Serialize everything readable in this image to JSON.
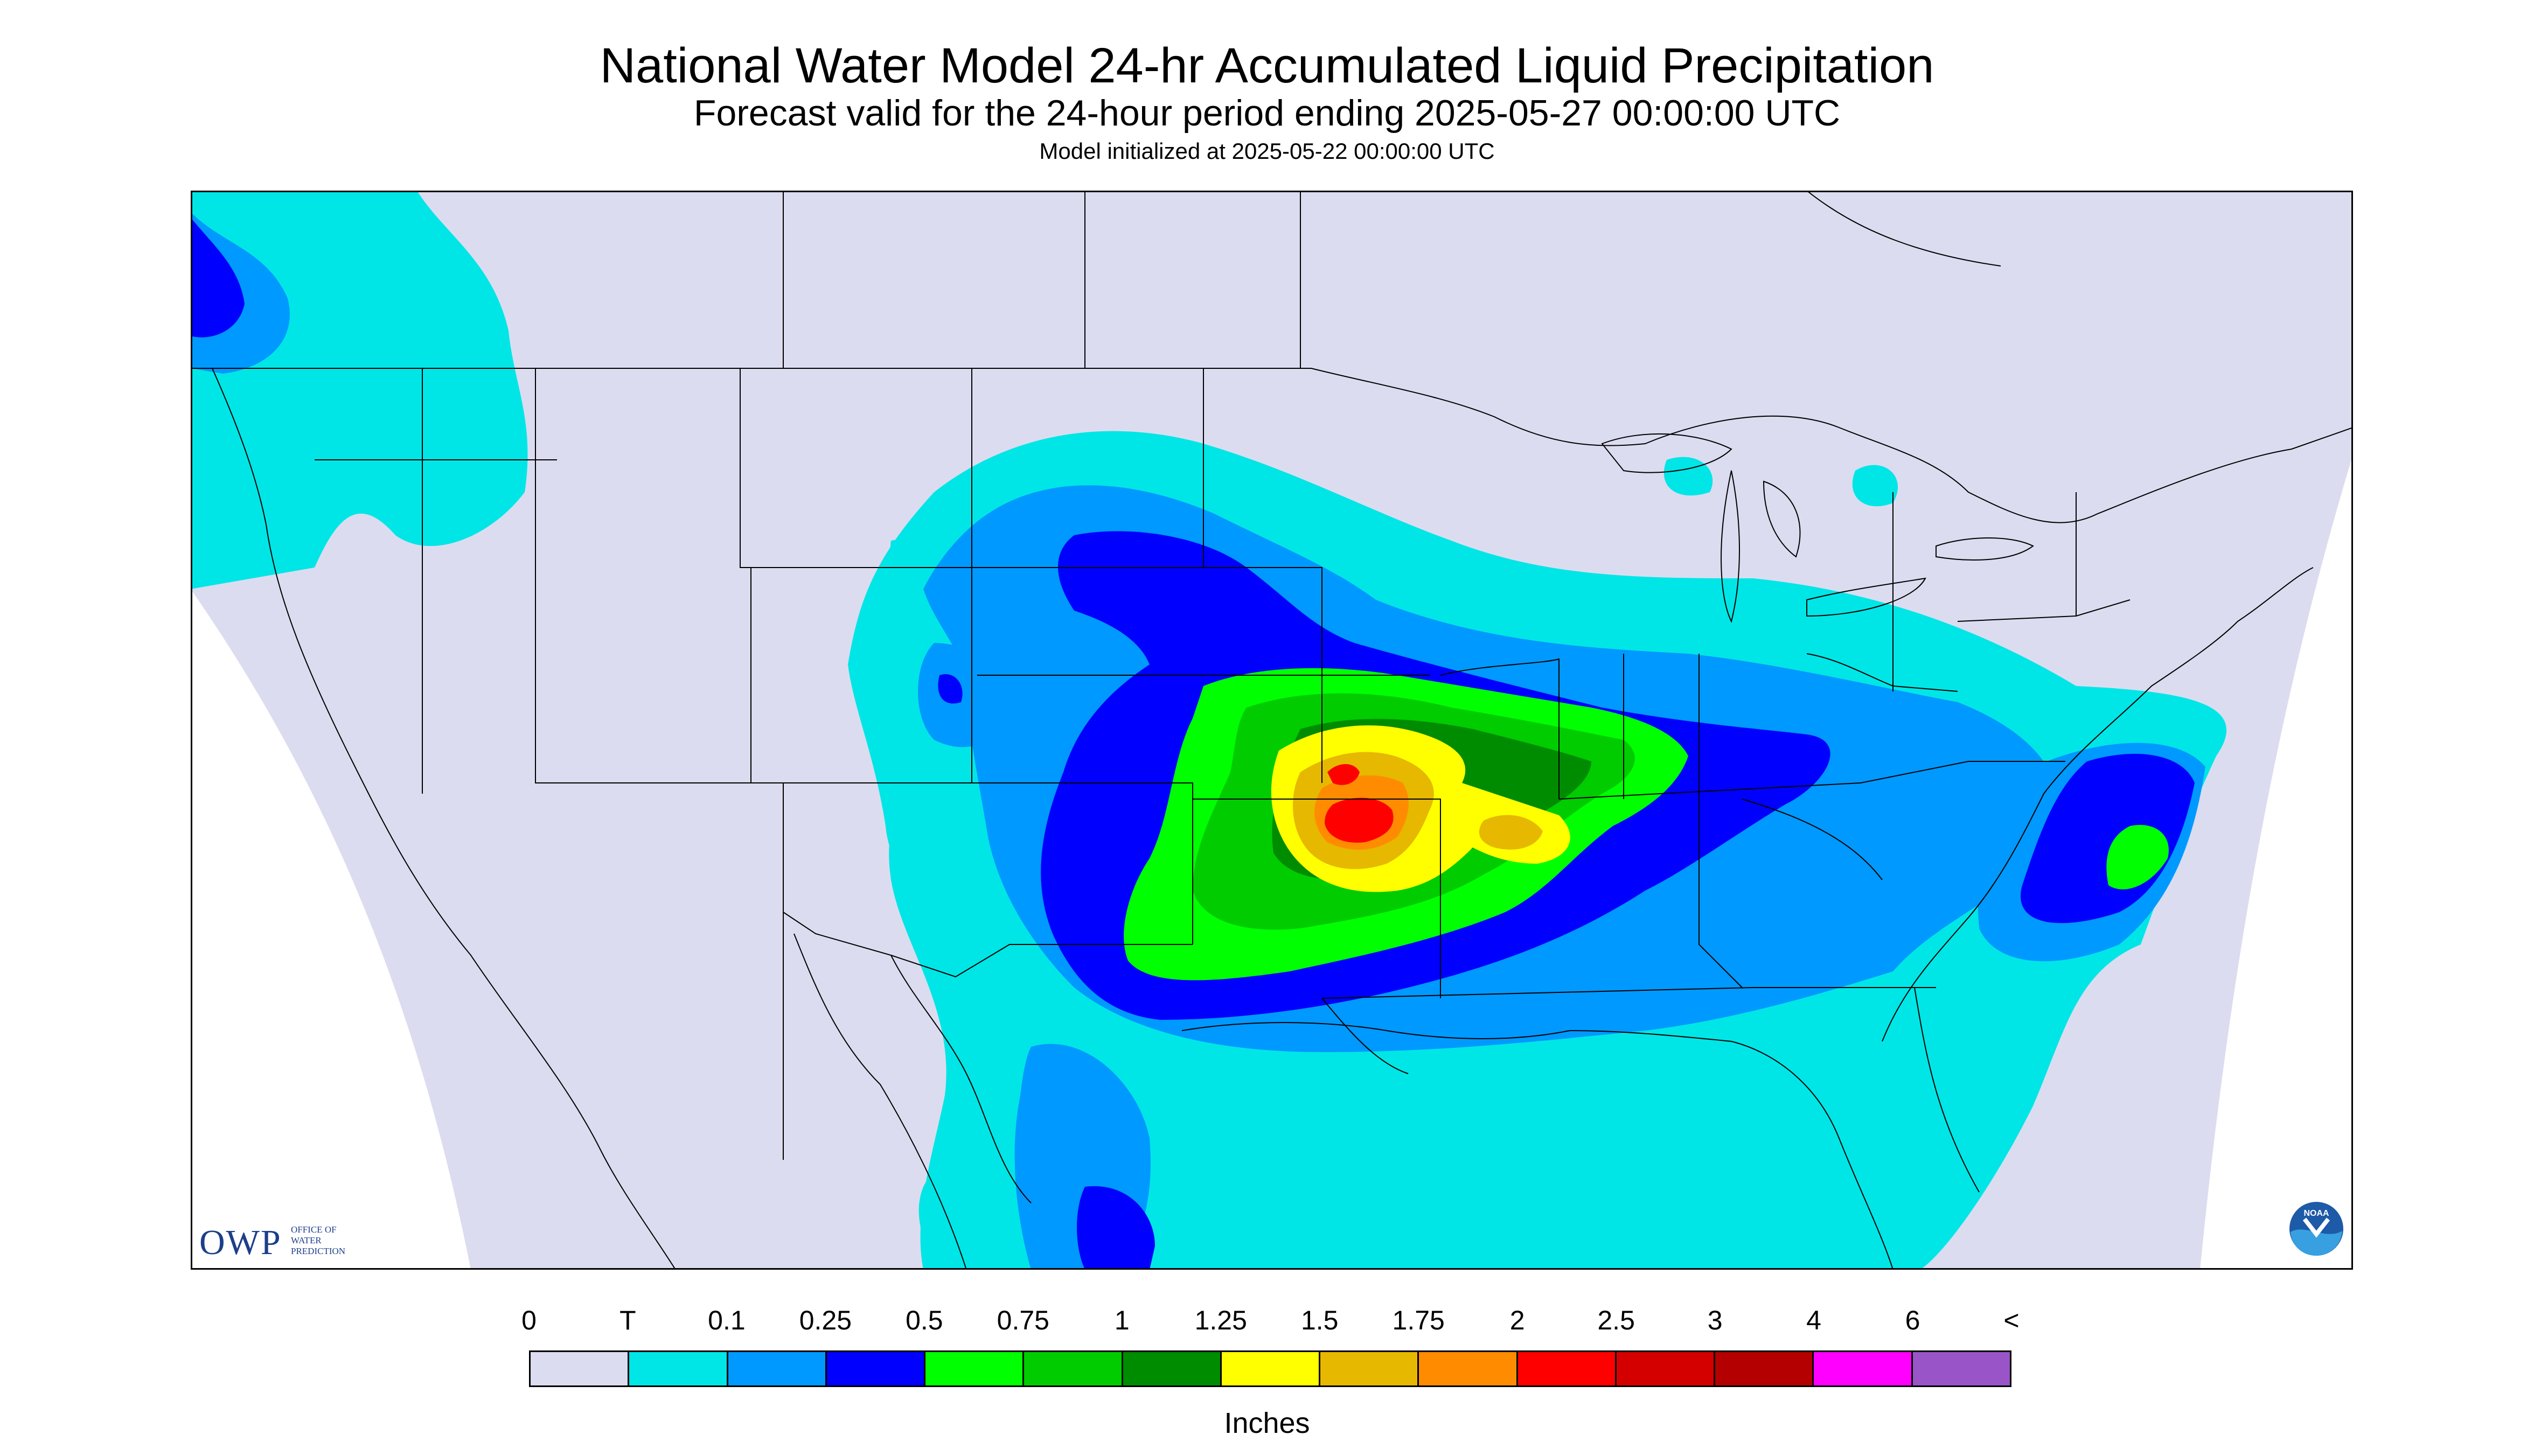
{
  "title": "National Water Model 24-hr Accumulated Liquid Precipitation",
  "subtitle": "Forecast valid for the 24-hour period ending 2025-05-27 00:00:00 UTC",
  "model_init": "Model initialized at 2025-05-22 00:00:00 UTC",
  "logos": {
    "owp_mark": "OWP",
    "owp_text_1": "OFFICE OF",
    "owp_text_2": "WATER",
    "owp_text_3": "PREDICTION",
    "noaa": "NOAA"
  },
  "legend": {
    "tick_labels": [
      "0",
      "T",
      "0.1",
      "0.25",
      "0.5",
      "0.75",
      "1",
      "1.25",
      "1.5",
      "1.75",
      "2",
      "2.5",
      "3",
      "4",
      "6",
      "<"
    ],
    "colors": [
      "#dcdcf0",
      "#00e6e6",
      "#0099ff",
      "#0000ff",
      "#00ff00",
      "#00cc00",
      "#008c00",
      "#ffff00",
      "#e6b800",
      "#ff8c00",
      "#ff0000",
      "#d40000",
      "#b40000",
      "#ff00ff",
      "#9955c8"
    ],
    "units": "Inches"
  },
  "map_colors": {
    "nodata": "#dcdcf0",
    "ocean_outside": "#ffffff",
    "boundary": "#000000"
  }
}
